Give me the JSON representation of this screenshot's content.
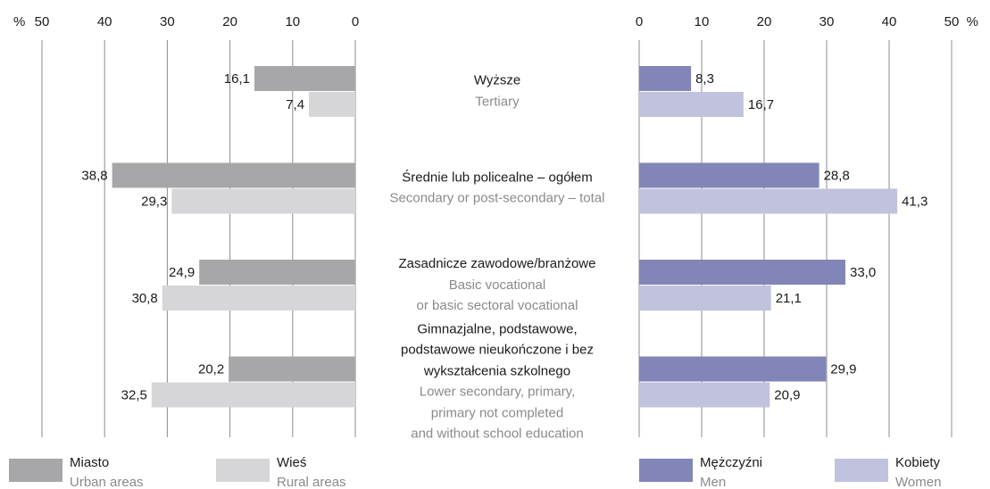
{
  "chart_data": [
    {
      "type": "bar",
      "orientation": "horizontal",
      "reversed": true,
      "xlabel": "%",
      "xlim": [
        0,
        50
      ],
      "xticks": [
        0,
        10,
        20,
        30,
        40,
        50
      ],
      "grid": true,
      "categories": [
        "Wyższe",
        "Średnie lub policealne – ogółem",
        "Zasadnicze zawodowe/branżowe",
        "Gimnazjalne, podstawowe,\npodstawowe nieukończone i bez\nwykształcenia szkolnego"
      ],
      "categories_en": [
        "Tertiary",
        "Secondary or post-secondary – total",
        "Basic vocational\nor basic sectoral vocational",
        "Lower secondary, primary,\nprimary not completed\nand without school education"
      ],
      "series": [
        {
          "name": "Miasto",
          "name_en": "Urban areas",
          "color": "#a7a7a9",
          "values": [
            16.1,
            38.8,
            24.9,
            20.2
          ],
          "value_labels": [
            "16,1",
            "38,8",
            "24,9",
            "20,2"
          ]
        },
        {
          "name": "Wieś",
          "name_en": "Rural areas",
          "color": "#d6d6d8",
          "values": [
            7.4,
            29.3,
            30.8,
            32.5
          ],
          "value_labels": [
            "7,4",
            "29,3",
            "30,8",
            "32,5"
          ]
        }
      ]
    },
    {
      "type": "bar",
      "orientation": "horizontal",
      "reversed": false,
      "xlabel": "%",
      "xlim": [
        0,
        50
      ],
      "xticks": [
        0,
        10,
        20,
        30,
        40,
        50
      ],
      "grid": true,
      "series": [
        {
          "name": "Mężczyźni",
          "name_en": "Men",
          "color": "#8185b8",
          "values": [
            8.3,
            28.8,
            33.0,
            29.9
          ],
          "value_labels": [
            "8,3",
            "28,8",
            "33,0",
            "29,9"
          ]
        },
        {
          "name": "Kobiety",
          "name_en": "Women",
          "color": "#c0c2de",
          "values": [
            16.7,
            41.3,
            21.1,
            20.9
          ],
          "value_labels": [
            "16,7",
            "41,3",
            "21,1",
            "20,9"
          ]
        }
      ]
    }
  ]
}
